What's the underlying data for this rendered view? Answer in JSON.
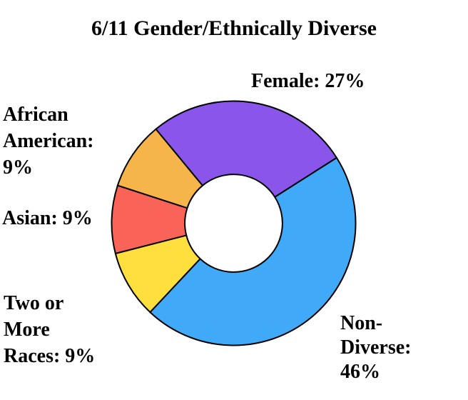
{
  "chart_data": {
    "type": "pie",
    "subtype": "donut",
    "title": "6/11 Gender/Ethnically Diverse",
    "categories": [
      "Female",
      "African American",
      "Asian",
      "Two or More Races",
      "Non-Diverse"
    ],
    "values": [
      27,
      9,
      9,
      9,
      46
    ],
    "unit": "%",
    "colors": [
      "#8955EB",
      "#F5B54A",
      "#FA6357",
      "#FFDF3D",
      "#41AAF8"
    ],
    "stroke_color": "#000000",
    "stroke_width": 2,
    "start_angle_deg": 32.4,
    "direction": "counterclockwise",
    "inner_radius_ratio": 0.4,
    "background": "#FFFFFF",
    "legend_position": "none",
    "data_labels": [
      "Female: 27%",
      "African\nAmerican:\n9%",
      "Asian: 9%",
      "Two or\nMore\nRaces: 9%",
      "Non-\nDiverse:\n46%"
    ]
  },
  "labels": {
    "female": "Female: 27%",
    "african_american": "African\nAmerican:\n9%",
    "asian": "Asian: 9%",
    "two_or_more": "Two or\nMore\nRaces: 9%",
    "non_diverse": "Non-\nDiverse:\n46%"
  }
}
